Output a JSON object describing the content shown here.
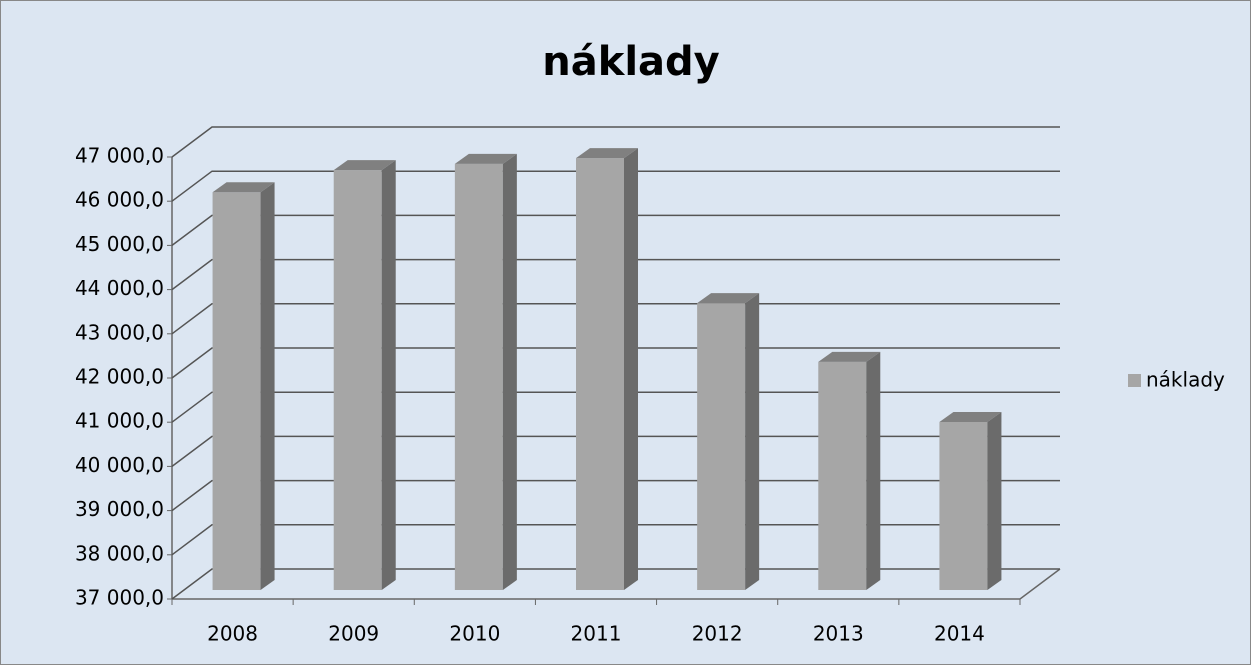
{
  "chart_data": {
    "type": "bar3d",
    "title": "náklady",
    "categories": [
      "2008",
      "2009",
      "2010",
      "2011",
      "2012",
      "2013",
      "2014"
    ],
    "series": [
      {
        "name": "náklady",
        "color": "#a6a6a6",
        "values": [
          46000,
          46500,
          46640,
          46770,
          43490,
          42160,
          40800
        ]
      }
    ],
    "ylim": [
      37000,
      47000
    ],
    "yticks": [
      {
        "value": 37000,
        "label": "37 000,0"
      },
      {
        "value": 38000,
        "label": "38 000,0"
      },
      {
        "value": 39000,
        "label": "39 000,0"
      },
      {
        "value": 40000,
        "label": "40 000,0"
      },
      {
        "value": 41000,
        "label": "41 000,0"
      },
      {
        "value": 42000,
        "label": "42 000,0"
      },
      {
        "value": 43000,
        "label": "43 000,0"
      },
      {
        "value": 44000,
        "label": "44 000,0"
      },
      {
        "value": 45000,
        "label": "45 000,0"
      },
      {
        "value": 46000,
        "label": "46 000,0"
      },
      {
        "value": 47000,
        "label": "47 000,0"
      }
    ],
    "grid": true,
    "legend": "right"
  }
}
